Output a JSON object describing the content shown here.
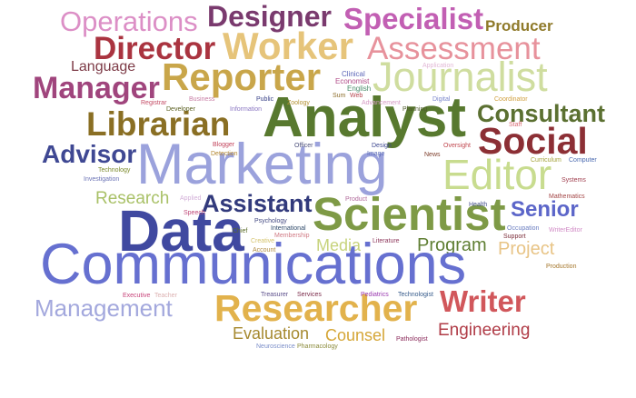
{
  "words": [
    {
      "text": "Operations",
      "color": "#dc8fc6"
    },
    {
      "text": "Designer",
      "color": "#7a3a6e"
    },
    {
      "text": "Specialist",
      "color": "#c25fb3"
    },
    {
      "text": "Producer",
      "color": "#8f7a2a"
    },
    {
      "text": "Director",
      "color": "#aa3440"
    },
    {
      "text": "Worker",
      "color": "#e6c47a"
    },
    {
      "text": "Assessment",
      "color": "#e7929c"
    },
    {
      "text": "Language",
      "color": "#7d3b47"
    },
    {
      "text": "Reporter",
      "color": "#c9a64a"
    },
    {
      "text": "Journalist",
      "color": "#cfdd9f"
    },
    {
      "text": "Manager",
      "color": "#a0457d"
    },
    {
      "text": "Analyst",
      "color": "#58792f"
    },
    {
      "text": "Librarian",
      "color": "#8a6f24"
    },
    {
      "text": "Consultant",
      "color": "#5b7031"
    },
    {
      "text": "Social",
      "color": "#8c2f35"
    },
    {
      "text": "Advisor",
      "color": "#3f4893"
    },
    {
      "text": "Marketing",
      "color": "#9ba2dc"
    },
    {
      "text": "Editor",
      "color": "#c8dc8f"
    },
    {
      "text": "Research",
      "color": "#a9c167"
    },
    {
      "text": "Assistant",
      "color": "#323a7c"
    },
    {
      "text": "Scientist",
      "color": "#7e9a46"
    },
    {
      "text": "Senior",
      "color": "#5c66c9"
    },
    {
      "text": "Data",
      "color": "#4049a0"
    },
    {
      "text": "Media",
      "color": "#c7d37c"
    },
    {
      "text": "Program",
      "color": "#607f34"
    },
    {
      "text": "Project",
      "color": "#e8c486"
    },
    {
      "text": "Communications",
      "color": "#6670d0"
    },
    {
      "text": "Management",
      "color": "#a3a8dd"
    },
    {
      "text": "Researcher",
      "color": "#e2b24c"
    },
    {
      "text": "Writer",
      "color": "#d1575b"
    },
    {
      "text": "Evaluation",
      "color": "#a6892f"
    },
    {
      "text": "Counsel",
      "color": "#d5a637"
    },
    {
      "text": "Engineering",
      "color": "#b03c47"
    },
    {
      "text": "Application",
      "color": "#e2b8d6"
    },
    {
      "text": "Clinical",
      "color": "#5b66b8"
    },
    {
      "text": "Economist",
      "color": "#b04b88"
    },
    {
      "text": "English",
      "color": "#4a8b6a"
    },
    {
      "text": "Sum",
      "color": "#8c6d2a"
    },
    {
      "text": "Web",
      "color": "#b5454f"
    },
    {
      "text": "Advancement",
      "color": "#d59ac4"
    },
    {
      "text": "Digital",
      "color": "#7b86cc"
    },
    {
      "text": "Coordinator",
      "color": "#d0a040"
    },
    {
      "text": "Registrar",
      "color": "#c44c66"
    },
    {
      "text": "Business",
      "color": "#c77ca3"
    },
    {
      "text": "Public",
      "color": "#3a4388"
    },
    {
      "text": "Zoology",
      "color": "#b39131"
    },
    {
      "text": "Developer",
      "color": "#5a5f20"
    },
    {
      "text": "Information",
      "color": "#8a76c2"
    },
    {
      "text": "Planning",
      "color": "#4e5b2b"
    },
    {
      "text": "Staff",
      "color": "#d96a74"
    },
    {
      "text": "Blogger",
      "color": "#c2425a"
    },
    {
      "text": "Officer",
      "color": "#4b4f7a"
    },
    {
      "text": "Design",
      "color": "#3e4890"
    },
    {
      "text": "Image",
      "color": "#5a6ab6"
    },
    {
      "text": "Oversight",
      "color": "#c0474f"
    },
    {
      "text": "News",
      "color": "#7c3d2a"
    },
    {
      "text": "Curriculum",
      "color": "#a4a23a"
    },
    {
      "text": "Computer",
      "color": "#4a6ab0"
    },
    {
      "text": "Detection",
      "color": "#b3862e"
    },
    {
      "text": "Technology",
      "color": "#7c8a2c"
    },
    {
      "text": "Systems",
      "color": "#a04050"
    },
    {
      "text": "Investigation",
      "color": "#6c74b6"
    },
    {
      "text": "Applied",
      "color": "#d3b0d8"
    },
    {
      "text": "Product",
      "color": "#b16a9b"
    },
    {
      "text": "Health",
      "color": "#4b5690"
    },
    {
      "text": "Mathematics",
      "color": "#a34545"
    },
    {
      "text": "Speech",
      "color": "#c04a78"
    },
    {
      "text": "Psychology",
      "color": "#444a82"
    },
    {
      "text": "Chief",
      "color": "#5a6b28"
    },
    {
      "text": "International",
      "color": "#2f4a6a"
    },
    {
      "text": "Membership",
      "color": "#d07a84"
    },
    {
      "text": "Creative",
      "color": "#d5c46f"
    },
    {
      "text": "Literature",
      "color": "#8f3a5e"
    },
    {
      "text": "Occupation",
      "color": "#6a7dc0"
    },
    {
      "text": "WriterEditor",
      "color": "#d18cc6"
    },
    {
      "text": "Support",
      "color": "#7c2e3a"
    },
    {
      "text": "Account",
      "color": "#b08c44"
    },
    {
      "text": "Production",
      "color": "#a5772c"
    },
    {
      "text": "Executive",
      "color": "#c7437a"
    },
    {
      "text": "Teacher",
      "color": "#dcb0b0"
    },
    {
      "text": "Treasurer",
      "color": "#5a4d8a"
    },
    {
      "text": "Services",
      "color": "#7a2a4a"
    },
    {
      "text": "Pediatrics",
      "color": "#9a3ab0"
    },
    {
      "text": "Technologist",
      "color": "#355a8a"
    },
    {
      "text": "Pathologist",
      "color": "#8a2a5a"
    },
    {
      "text": "Neuroscience",
      "color": "#7a8dc8"
    },
    {
      "text": "Pharmacology",
      "color": "#8a8a3a"
    }
  ]
}
